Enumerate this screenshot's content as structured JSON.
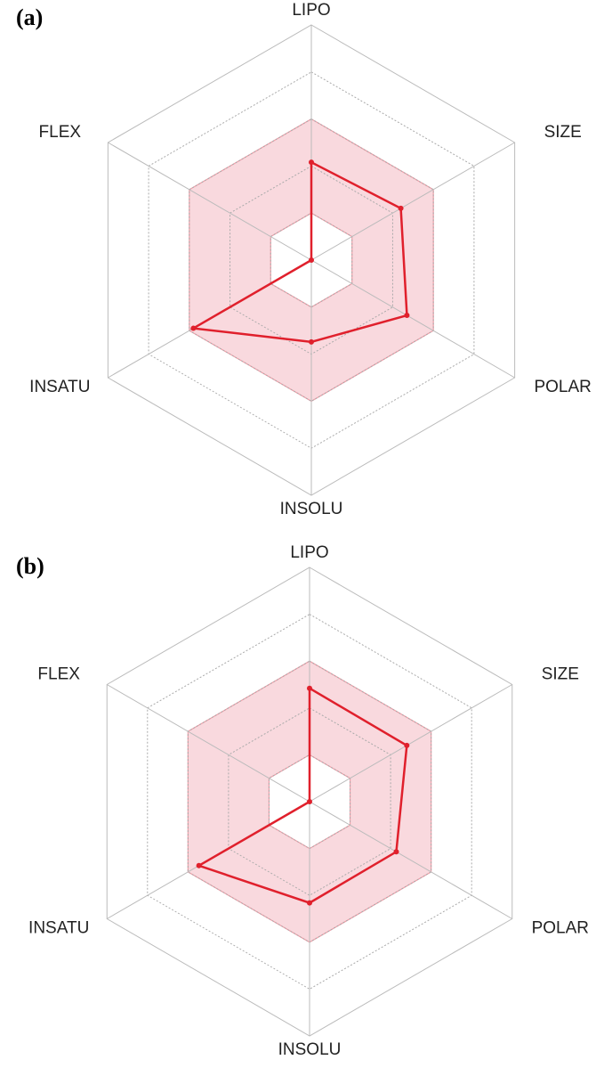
{
  "chart_data": [
    {
      "type": "radar",
      "panel_label": "(a)",
      "axes": [
        "LIPO",
        "SIZE",
        "POLAR",
        "INSOLU",
        "INSATU",
        "FLEX"
      ],
      "values": [
        2.08,
        2.2,
        2.35,
        1.74,
        2.9,
        0
      ],
      "rlim": [
        0,
        5
      ],
      "rticks": [
        1,
        2,
        3,
        4,
        5
      ],
      "optimal_range": [
        1,
        3
      ],
      "color": "#e0202c",
      "band_color": "#f9d9de",
      "grid": true
    },
    {
      "type": "radar",
      "panel_label": "(b)",
      "axes": [
        "LIPO",
        "SIZE",
        "POLAR",
        "INSOLU",
        "INSATU",
        "FLEX"
      ],
      "values": [
        2.42,
        2.4,
        2.14,
        2.16,
        2.73,
        0
      ],
      "rlim": [
        0,
        5
      ],
      "rticks": [
        1,
        2,
        3,
        4,
        5
      ],
      "optimal_range": [
        1,
        3
      ],
      "color": "#e0202c",
      "band_color": "#f9d9de",
      "grid": true
    }
  ]
}
